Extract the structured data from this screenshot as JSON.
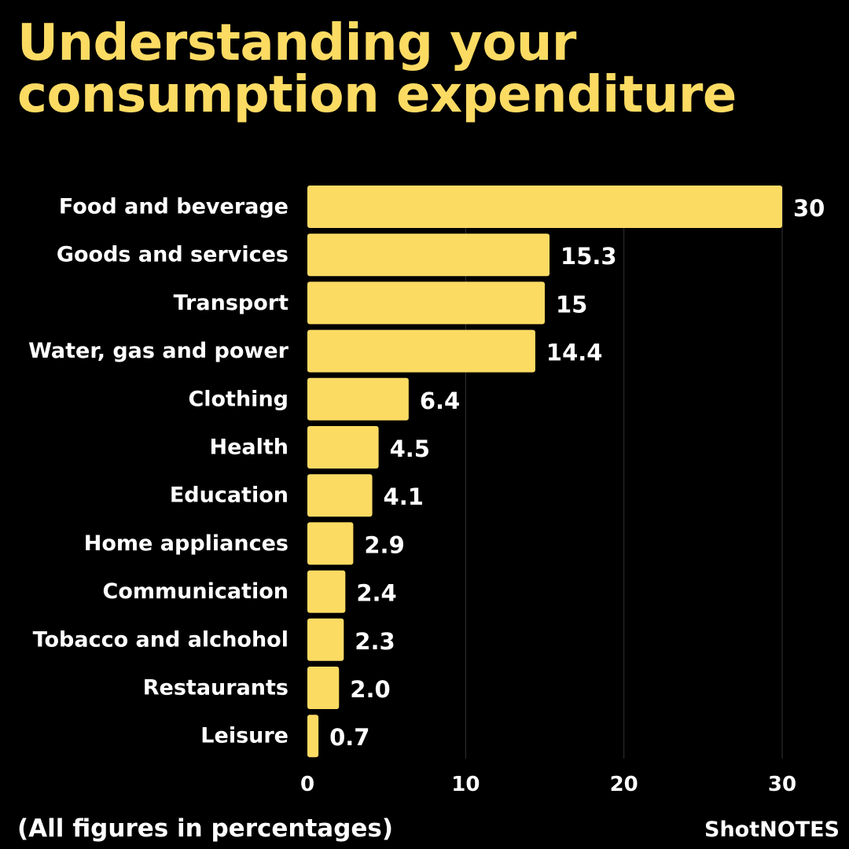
{
  "title": {
    "line1": "Understanding your",
    "line2": "consumption expenditure"
  },
  "footnote": "(All figures in percentages)",
  "brand": "ShotNOTES",
  "colors": {
    "bar": "#FCDB63",
    "title": "#FCDB63",
    "text": "#FFFFFF",
    "background": "#000000",
    "grid": "#333333"
  },
  "chart_data": {
    "type": "bar",
    "orientation": "horizontal",
    "categories": [
      "Food and beverage",
      "Goods and services",
      "Transport",
      "Water, gas and power",
      "Clothing",
      "Health",
      "Education",
      "Home appliances",
      "Communication",
      "Tobacco and alchohol",
      "Restaurants",
      "Leisure"
    ],
    "values": [
      30,
      15.3,
      15,
      14.4,
      6.4,
      4.5,
      4.1,
      2.9,
      2.4,
      2.3,
      2.0,
      0.7
    ],
    "value_labels": [
      "30",
      "15.3",
      "15",
      "14.4",
      "6.4",
      "4.5",
      "4.1",
      "2.9",
      "2.4",
      "2.3",
      "2.0",
      "0.7"
    ],
    "xlim": [
      0,
      30
    ],
    "xticks": [
      "0",
      "10",
      "20",
      "30"
    ],
    "grid": "vertical",
    "legend": "none"
  }
}
